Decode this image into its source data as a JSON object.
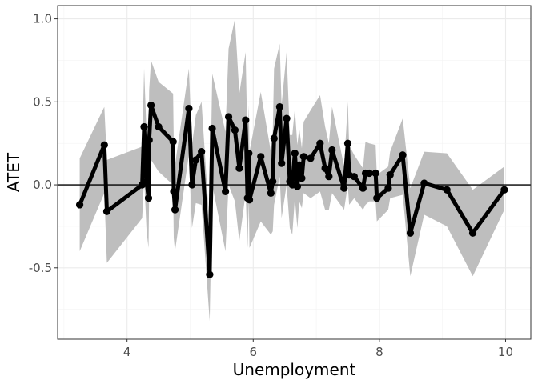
{
  "chart_data": {
    "type": "line",
    "xlabel": "Unemployment",
    "ylabel": "ATET",
    "xlim": [
      2.9,
      10.4
    ],
    "ylim": [
      -0.93,
      1.08
    ],
    "xticks": [
      4,
      6,
      8,
      10
    ],
    "xtick_labels": [
      "4",
      "6",
      "8",
      "10"
    ],
    "yticks": [
      -0.5,
      0.0,
      0.5,
      1.0
    ],
    "ytick_labels": [
      "-0.5",
      "0.0",
      "0.5",
      "1.0"
    ],
    "grid": true,
    "reference_line_y": 0,
    "colors": {
      "line": "#000000",
      "band": "#bebebe",
      "grid_major": "#ebebeb",
      "grid_minor": "#f3f3f3",
      "panel_border": "#333333"
    },
    "series": [
      {
        "x": [
          3.25,
          3.64,
          3.68,
          4.24,
          4.27,
          4.31,
          4.34,
          4.35,
          4.38,
          4.5,
          4.73,
          4.74,
          4.76,
          4.98,
          5.03,
          5.09,
          5.18,
          5.31,
          5.35,
          5.56,
          5.61,
          5.71,
          5.78,
          5.88,
          5.91,
          5.93,
          5.94,
          6.12,
          6.28,
          6.31,
          6.33,
          6.42,
          6.45,
          6.53,
          6.58,
          6.62,
          6.66,
          6.7,
          6.73,
          6.77,
          6.8,
          6.91,
          7.06,
          7.14,
          7.2,
          7.25,
          7.44,
          7.5,
          7.52,
          7.6,
          7.74,
          7.78,
          7.84,
          7.94,
          7.96,
          8.14,
          8.17,
          8.37,
          8.49,
          8.71,
          9.07,
          9.48,
          9.98
        ],
        "y": [
          -0.12,
          0.24,
          -0.16,
          0.0,
          0.35,
          0.02,
          -0.08,
          0.27,
          0.48,
          0.35,
          0.26,
          -0.04,
          -0.15,
          0.46,
          0.0,
          0.15,
          0.2,
          -0.54,
          0.34,
          -0.04,
          0.41,
          0.33,
          0.1,
          0.39,
          -0.08,
          0.19,
          -0.09,
          0.17,
          -0.05,
          0.02,
          0.28,
          0.47,
          0.13,
          0.4,
          0.02,
          0.0,
          0.19,
          -0.01,
          0.12,
          0.04,
          0.17,
          0.16,
          0.25,
          0.1,
          0.05,
          0.21,
          -0.02,
          0.25,
          0.06,
          0.05,
          -0.02,
          0.07,
          0.07,
          0.07,
          -0.08,
          -0.02,
          0.06,
          0.18,
          -0.29,
          0.01,
          -0.03,
          -0.29,
          -0.03
        ],
        "lower": [
          -0.4,
          -0.05,
          -0.47,
          -0.2,
          0.05,
          -0.28,
          -0.38,
          -0.05,
          0.15,
          0.08,
          0.0,
          -0.32,
          -0.4,
          0.18,
          -0.26,
          -0.11,
          -0.12,
          -0.82,
          0.0,
          -0.4,
          0.0,
          -0.1,
          -0.34,
          -0.05,
          -0.38,
          -0.1,
          -0.38,
          -0.22,
          -0.3,
          -0.28,
          -0.12,
          0.05,
          -0.2,
          0.0,
          -0.26,
          -0.3,
          -0.08,
          -0.26,
          -0.1,
          -0.14,
          -0.05,
          -0.08,
          -0.04,
          -0.15,
          -0.15,
          -0.05,
          -0.15,
          0.0,
          -0.12,
          -0.08,
          -0.15,
          -0.12,
          -0.1,
          -0.1,
          -0.22,
          -0.15,
          -0.08,
          -0.06,
          -0.55,
          -0.18,
          -0.25,
          -0.55,
          -0.15
        ],
        "upper": [
          0.16,
          0.47,
          0.15,
          0.23,
          0.7,
          0.3,
          0.25,
          0.57,
          0.75,
          0.62,
          0.55,
          0.25,
          0.12,
          0.7,
          0.24,
          0.42,
          0.5,
          -0.26,
          0.67,
          0.32,
          0.82,
          1.0,
          0.55,
          0.8,
          0.22,
          0.48,
          0.2,
          0.56,
          0.2,
          0.32,
          0.7,
          0.85,
          0.48,
          0.8,
          0.3,
          0.3,
          0.46,
          0.24,
          0.34,
          0.22,
          0.38,
          0.45,
          0.54,
          0.35,
          0.25,
          0.47,
          0.11,
          0.5,
          0.24,
          0.18,
          0.1,
          0.26,
          0.25,
          0.24,
          0.06,
          0.11,
          0.2,
          0.4,
          -0.02,
          0.2,
          0.19,
          -0.03,
          0.11
        ]
      }
    ]
  }
}
